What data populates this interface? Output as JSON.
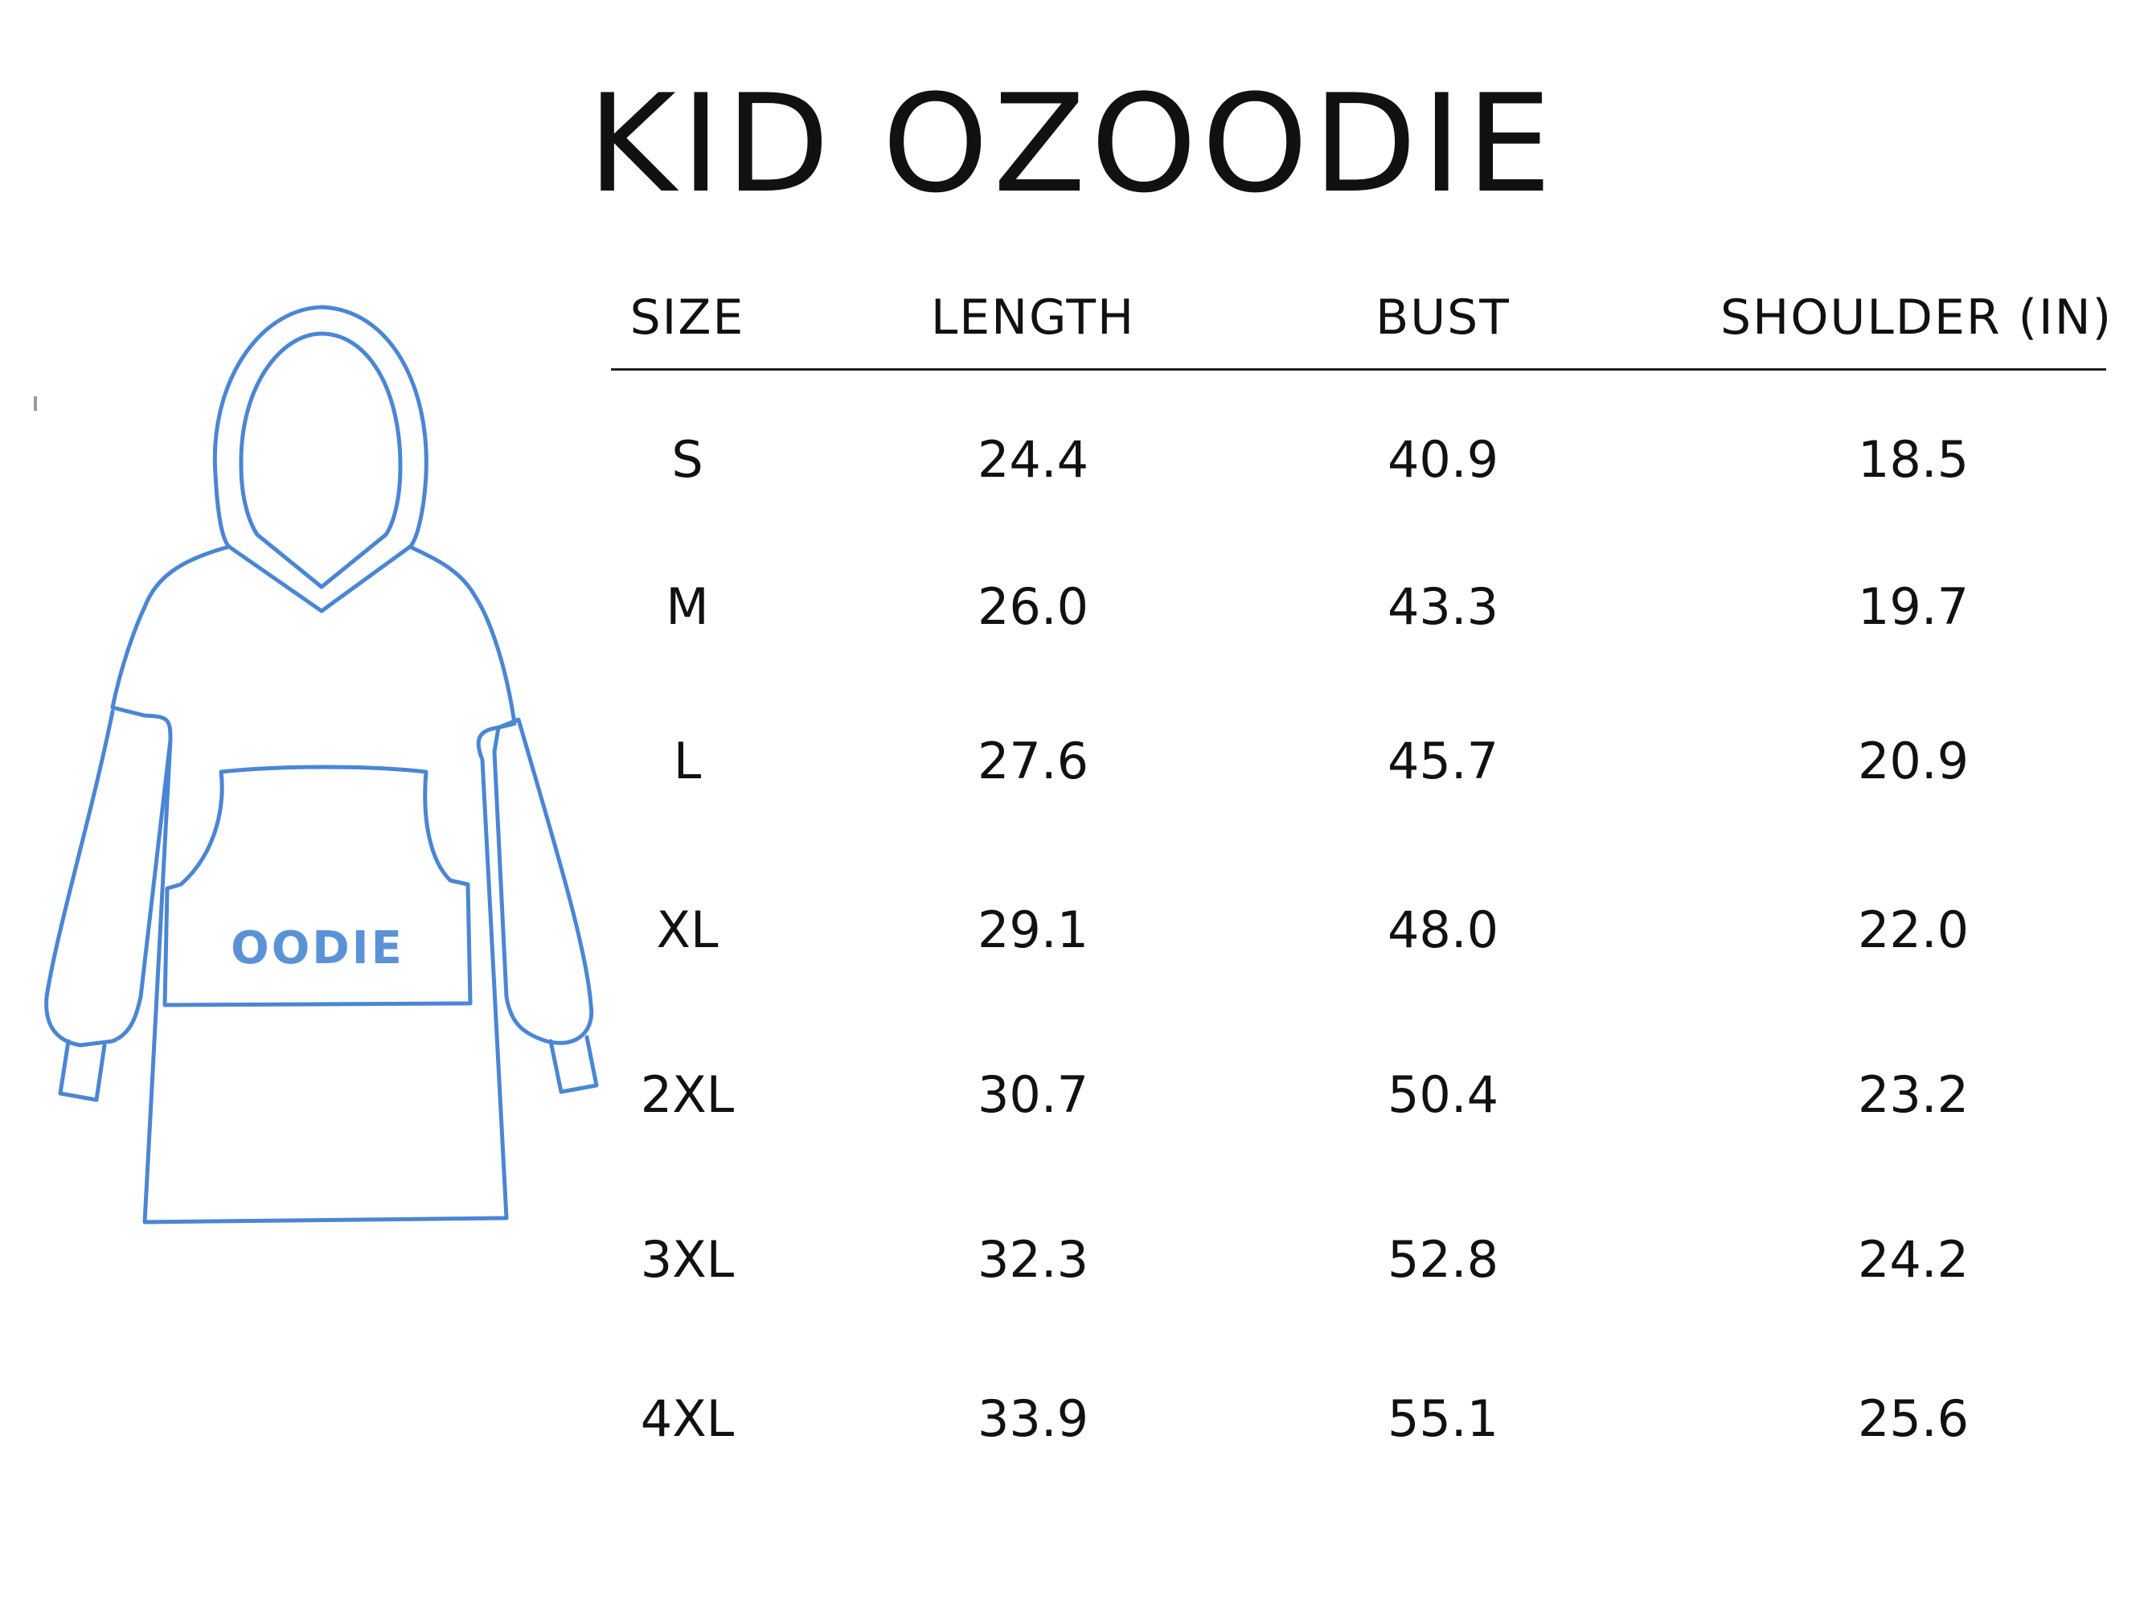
{
  "title": "KID OZOODIE",
  "illustration": {
    "pocket_brand": "OODIE",
    "line_color": "#4a86d4"
  },
  "table": {
    "headers": [
      "SIZE",
      "LENGTH",
      "BUST",
      "SHOULDER (IN)"
    ],
    "rows": [
      [
        "S",
        "24.4",
        "40.9",
        "18.5"
      ],
      [
        "M",
        "26.0",
        "43.3",
        "19.7"
      ],
      [
        "L",
        "27.6",
        "45.7",
        "20.9"
      ],
      [
        "XL",
        "29.1",
        "48.0",
        "22.0"
      ],
      [
        "2XL",
        "30.7",
        "50.4",
        "23.2"
      ],
      [
        "3XL",
        "32.3",
        "52.8",
        "24.2"
      ],
      [
        "4XL",
        "33.9",
        "55.1",
        "25.6"
      ]
    ]
  }
}
